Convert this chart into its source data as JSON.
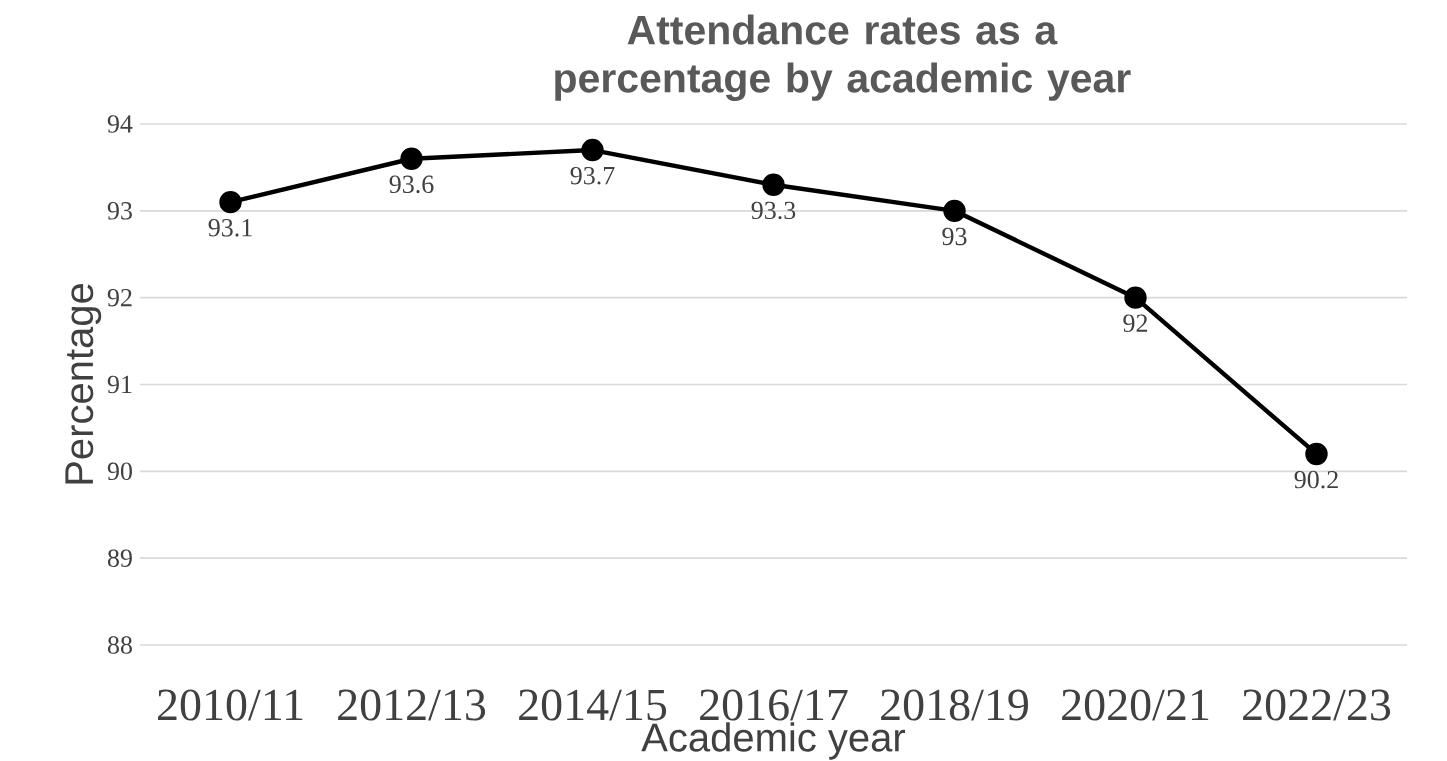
{
  "chart_data": {
    "type": "line",
    "title": "Attendance rates as a percentage by academic year",
    "xlabel": "Academic year",
    "ylabel": "Percentage",
    "categories": [
      "2010/11",
      "2012/13",
      "2014/15",
      "2016/17",
      "2018/19",
      "2020/21",
      "2022/23"
    ],
    "series": [
      {
        "color": "#000000",
        "values": [
          93.1,
          93.6,
          93.7,
          93.3,
          93,
          92,
          90.2
        ]
      }
    ],
    "ylim": [
      88,
      94
    ],
    "yticks": [
      88,
      89,
      90,
      91,
      92,
      93,
      94
    ],
    "grid": "y",
    "marker": "circle",
    "line_style": "solid",
    "data_labels": true
  }
}
